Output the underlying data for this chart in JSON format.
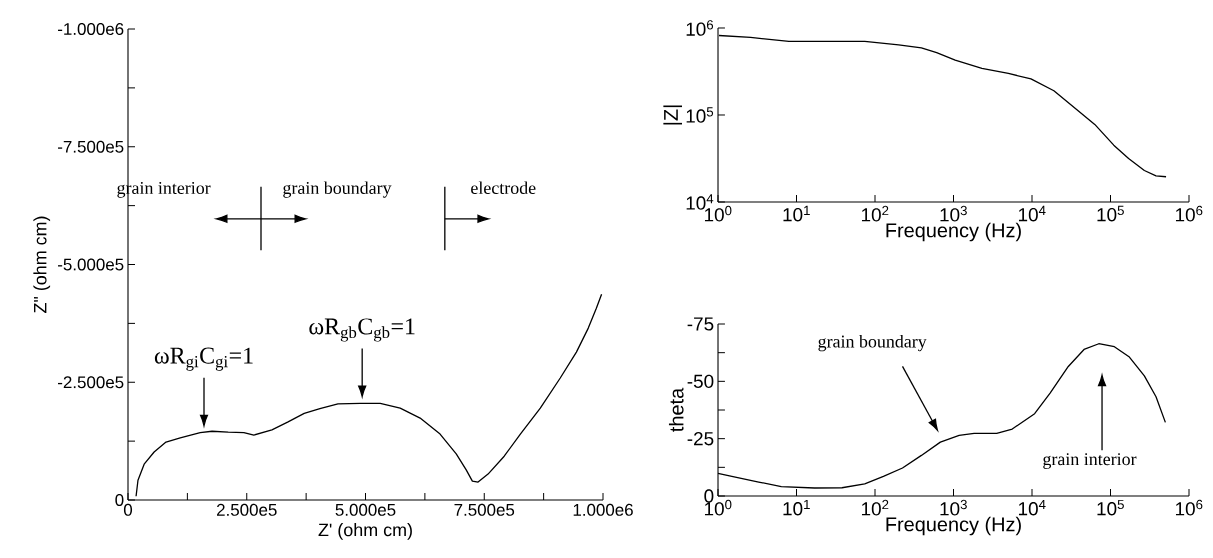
{
  "chart_data": [
    {
      "type": "line",
      "xlabel": "Z' (ohm cm)",
      "ylabel": "Z\" (ohm cm)",
      "xlim": [
        0,
        1000000
      ],
      "ylim": [
        0,
        -1000000
      ],
      "xticks": [
        0,
        {
          "value": 125000,
          "label": null
        },
        {
          "value": 250000,
          "label": "2.500e5"
        },
        {
          "value": 375000,
          "label": null
        },
        {
          "value": 500000,
          "label": "5.000e5"
        },
        {
          "value": 625000,
          "label": null
        },
        {
          "value": 750000,
          "label": "7.500e5"
        },
        {
          "value": 875000,
          "label": null
        },
        {
          "value": 1000000,
          "label": "1.000e6"
        }
      ],
      "yticks": [
        0,
        {
          "value": -125000,
          "label": null
        },
        {
          "value": -250000,
          "label": "-2.500e5"
        },
        {
          "value": -375000,
          "label": null
        },
        {
          "value": -500000,
          "label": "-5.000e5"
        },
        {
          "value": -625000,
          "label": null
        },
        {
          "value": -750000,
          "label": "-7.500e5"
        },
        {
          "value": -875000,
          "label": null
        },
        {
          "value": -1000000,
          "label": "-1.000e6"
        }
      ],
      "series": [
        {
          "color": "#000000",
          "x": [
            17000,
            21000,
            34000,
            55000,
            80000,
            110000,
            152000,
            177000,
            211000,
            244000,
            265000,
            303000,
            337000,
            371000,
            404000,
            442000,
            489000,
            531000,
            573000,
            615000,
            657000,
            691000,
            712000,
            725000,
            737000,
            758000,
            792000,
            826000,
            868000,
            910000,
            944000,
            969000,
            986000,
            997000
          ],
          "values": [
            -8000,
            -42000,
            -76000,
            -102000,
            -123000,
            -132000,
            -143000,
            -146000,
            -144000,
            -143000,
            -138000,
            -149000,
            -166000,
            -184000,
            -194000,
            -204000,
            -205000,
            -205000,
            -195000,
            -174000,
            -140000,
            -98000,
            -64000,
            -40000,
            -38000,
            -55000,
            -93000,
            -140000,
            -195000,
            -259000,
            -314000,
            -365000,
            -407000,
            -437000
          ]
        }
      ],
      "ref_lines": [
        {
          "axis": "x",
          "value": 280000
        },
        {
          "axis": "x",
          "value": 667000
        }
      ],
      "annotations": [
        "grain interior",
        "grain boundary",
        "electrode",
        {
          "text": "ωR$_{gi}$C$_{gi}$=1",
          "x": 160000,
          "y": -143000
        },
        {
          "text": "ωR$_{gb}$C$_{gb}$=1",
          "x": 493000,
          "y": -205000
        }
      ]
    },
    {
      "type": "line",
      "xlabel": "Frequency (Hz)",
      "ylabel": "|Z|",
      "log": "xy",
      "xlim": [
        1,
        1000000
      ],
      "ylim": [
        10000,
        1000000
      ],
      "xticks": [
        {
          "value": 1,
          "label": "10$^{0}$"
        },
        {
          "value": 10,
          "label": "10$^{1}$"
        },
        {
          "value": 100,
          "label": "10$^{2}$"
        },
        {
          "value": 1000,
          "label": "10$^{3}$"
        },
        {
          "value": 10000,
          "label": "10$^{4}$"
        },
        {
          "value": 100000,
          "label": "10$^{5}$"
        },
        {
          "value": 1000000,
          "label": "10$^{6}$"
        }
      ],
      "yticks": [
        {
          "value": 10000,
          "label": "10$^{4}$"
        },
        {
          "value": 100000,
          "label": "10$^{5}$"
        },
        {
          "value": 1000000,
          "label": "10$^{6}$"
        }
      ],
      "series": [
        {
          "color": "#000000",
          "x": [
            1.03,
            2.6,
            8,
            74,
            200,
            390,
            610,
            1050,
            2300,
            5000,
            9700,
            19000,
            37000,
            63000,
            110000,
            170000,
            270000,
            380000,
            510000
          ],
          "values": [
            820000,
            780000,
            700000,
            700000,
            640000,
            590000,
            520000,
            427000,
            343000,
            300000,
            260000,
            190000,
            116000,
            78000,
            45000,
            31600,
            23000,
            20000,
            19500
          ]
        }
      ]
    },
    {
      "type": "line",
      "xlabel": "Frequency (Hz)",
      "ylabel": "theta",
      "log": "x",
      "xlim": [
        1,
        1000000
      ],
      "ylim": [
        0,
        -75
      ],
      "xticks": [
        {
          "value": 1,
          "label": "10$^{0}$"
        },
        {
          "value": 10,
          "label": "10$^{1}$"
        },
        {
          "value": 100,
          "label": "10$^{2}$"
        },
        {
          "value": 1000,
          "label": "10$^{3}$"
        },
        {
          "value": 10000,
          "label": "10$^{4}$"
        },
        {
          "value": 100000,
          "label": "10$^{5}$"
        },
        {
          "value": 1000000,
          "label": "10$^{6}$"
        }
      ],
      "yticks": [
        0,
        {
          "value": -12.5,
          "label": null
        },
        -25,
        {
          "value": -37.5,
          "label": null
        },
        -50,
        {
          "value": -62.5,
          "label": null
        },
        -75
      ],
      "series": [
        {
          "color": "#000000",
          "x": [
            1,
            1.5,
            3.3,
            6.4,
            17,
            38,
            74,
            128,
            224,
            390,
            680,
            1180,
            1830,
            3550,
            5600,
            10800,
            17000,
            29000,
            46000,
            71000,
            112000,
            174000,
            270000,
            380000,
            500000
          ],
          "values": [
            -9.9,
            -8.6,
            -6.1,
            -4.1,
            -3.5,
            -3.6,
            -5.3,
            -8.6,
            -12.2,
            -17.7,
            -23.5,
            -26.4,
            -27.3,
            -27.3,
            -29.2,
            -35.9,
            -44.9,
            -56.5,
            -63.9,
            -66.4,
            -65.1,
            -60.6,
            -52.4,
            -43.3,
            -32.1
          ]
        }
      ],
      "annotations": [
        "grain boundary",
        "grain interior"
      ]
    }
  ]
}
